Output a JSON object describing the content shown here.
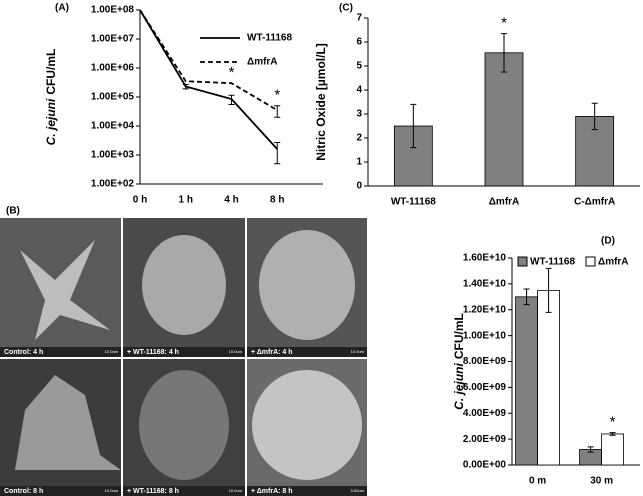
{
  "chart_data": [
    {
      "type": "line",
      "panel": "(A)",
      "ylabel": [
        "C. jejuni",
        "CFU/mL"
      ],
      "categories": [
        "0 h",
        "1 h",
        "4 h",
        "8 h"
      ],
      "log_y": true,
      "ylim": [
        100,
        100000000
      ],
      "yticks": [
        {
          "value": 100000000,
          "label": "1.00E+08"
        },
        {
          "value": 10000000,
          "label": "1.00E+07"
        },
        {
          "value": 1000000,
          "label": "1.00E+06"
        },
        {
          "value": 100000,
          "label": "1.00E+05"
        },
        {
          "value": 10000,
          "label": "1.00E+04"
        },
        {
          "value": 1000,
          "label": "1.00E+03"
        },
        {
          "value": 100,
          "label": "1.00E+02"
        }
      ],
      "series": [
        {
          "name": "WT-11168",
          "color": "#000000",
          "dashed": false,
          "values": [
            100000000,
            230000,
            85000,
            1600
          ],
          "errors": [
            0,
            40000,
            30000,
            1100
          ]
        },
        {
          "name": "ΔmfrA",
          "color": "#000000",
          "dashed": true,
          "values": [
            100000000,
            350000,
            300000,
            35000
          ],
          "errors": [
            0,
            0,
            0,
            15000
          ]
        }
      ],
      "annotations": [
        {
          "text": "*",
          "category": "4 h"
        },
        {
          "text": "*",
          "category": "8 h"
        }
      ]
    },
    {
      "type": "bar",
      "panel": "(C)",
      "ylabel": [
        "Nitric Oxide [µmol/L]"
      ],
      "categories": [
        "WT-11168",
        "ΔmfrA",
        "C-ΔmfrA"
      ],
      "ylim": [
        0,
        7
      ],
      "yticks": [
        0,
        1,
        2,
        3,
        4,
        5,
        6,
        7
      ],
      "series": [
        {
          "color": "#808080",
          "values": [
            2.5,
            5.55,
            2.9
          ],
          "errors": [
            0.9,
            0.8,
            0.55
          ]
        }
      ],
      "annotations": [
        {
          "text": "*",
          "category": "ΔmfrA"
        }
      ]
    },
    {
      "type": "bar",
      "panel": "(D)",
      "ylabel": [
        "C. jejuni",
        "CFU/mL"
      ],
      "categories": [
        "0 m",
        "30 m"
      ],
      "ylim": [
        0,
        16000000000
      ],
      "yticks": [
        {
          "value": 0,
          "label": "0.00E+00"
        },
        {
          "value": 2000000000,
          "label": "2.00E+09"
        },
        {
          "value": 4000000000,
          "label": "4.00E+09"
        },
        {
          "value": 6000000000,
          "label": "6.00E+09"
        },
        {
          "value": 8000000000,
          "label": "8.00E+09"
        },
        {
          "value": 10000000000,
          "label": "1.00E+10"
        },
        {
          "value": 12000000000,
          "label": "1.20E+10"
        },
        {
          "value": 14000000000,
          "label": "1.40E+10"
        },
        {
          "value": 16000000000,
          "label": "1.60E+10"
        }
      ],
      "series": [
        {
          "name": "WT-11168",
          "color": "#808080",
          "values": [
            13000000000,
            1200000000
          ],
          "errors": [
            600000000,
            200000000
          ]
        },
        {
          "name": "ΔmfrA",
          "color": "#ffffff",
          "values": [
            13500000000,
            2400000000
          ],
          "errors": [
            1700000000,
            100000000
          ]
        }
      ],
      "annotations": [
        {
          "text": "*",
          "category": "30 m"
        }
      ]
    }
  ],
  "panel_b": {
    "label": "(B)",
    "captions": [
      "Control: 4 h",
      "+ WT-11168: 4 h",
      "+ ΔmfrA: 4 h",
      "Control: 8 h",
      "+ WT-11168: 8 h",
      "+ ΔmfrA: 8 h"
    ],
    "scale_labels": [
      "10.0um",
      "10.0um",
      "10.0um",
      "10.0um",
      "10.0um",
      "5.00um"
    ]
  }
}
